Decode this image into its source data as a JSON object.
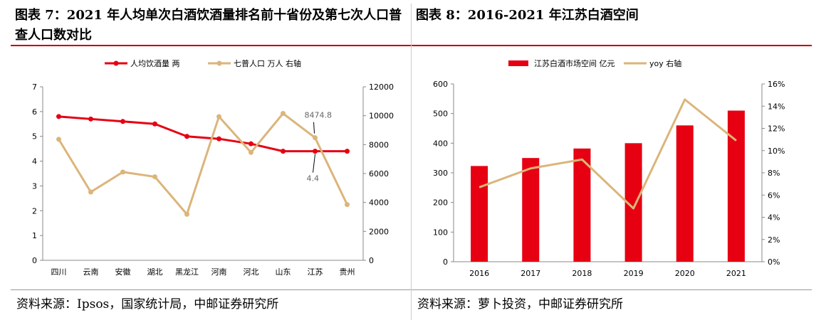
{
  "left": {
    "title": "图表 7：2021 年人均单次白酒饮酒量排名前十省份及第七次人口普查人口数对比",
    "source": "资料来源：Ipsos，国家统计局，中邮证券研究所"
  },
  "right": {
    "title": "图表 8：2016-2021 年江苏白酒空间",
    "source": "资料来源：萝卜投资，中邮证券研究所"
  },
  "chart_data": [
    {
      "type": "line",
      "categories": [
        "四川",
        "云南",
        "安徽",
        "湖北",
        "黑龙江",
        "河南",
        "河北",
        "山东",
        "江苏",
        "贵州"
      ],
      "series": [
        {
          "name": "人均饮酒量 两",
          "axis": "left",
          "color": "#e60012",
          "values": [
            5.8,
            5.7,
            5.6,
            5.5,
            5.0,
            4.9,
            4.7,
            4.4,
            4.4,
            4.4
          ]
        },
        {
          "name": "七普人口 万人 右轴",
          "axis": "right",
          "color": "#dbb57a",
          "values": [
            8367,
            4721,
            6103,
            5775,
            3185,
            9937,
            7461,
            10153,
            8474.8,
            3856
          ]
        }
      ],
      "ylim": [
        0,
        7
      ],
      "yticks": [
        "0",
        "1",
        "2",
        "3",
        "4",
        "5",
        "6",
        "7"
      ],
      "y2lim": [
        0,
        12000
      ],
      "y2ticks": [
        "0",
        "2000",
        "4000",
        "6000",
        "8000",
        "10000",
        "12000"
      ],
      "annotations": [
        "8474.8",
        "4.4"
      ],
      "legend": "top"
    },
    {
      "type": "bar",
      "categories": [
        "2016",
        "2017",
        "2018",
        "2019",
        "2020",
        "2021"
      ],
      "series": [
        {
          "name": "江苏白酒市场空间 亿元",
          "axis": "left",
          "type": "bar",
          "color": "#e60012",
          "values": [
            323,
            350,
            382,
            400,
            460,
            510
          ]
        },
        {
          "name": "yoy 右轴",
          "axis": "right",
          "type": "line",
          "color": "#dbb57a",
          "values": [
            6.7,
            8.4,
            9.2,
            4.8,
            14.6,
            10.9
          ]
        }
      ],
      "ylim": [
        0,
        600
      ],
      "yticks": [
        "0",
        "100",
        "200",
        "300",
        "400",
        "500",
        "600"
      ],
      "y2lim": [
        0,
        16
      ],
      "y2ticks": [
        "0%",
        "2%",
        "4%",
        "6%",
        "8%",
        "10%",
        "12%",
        "14%",
        "16%"
      ],
      "legend": "top"
    }
  ]
}
